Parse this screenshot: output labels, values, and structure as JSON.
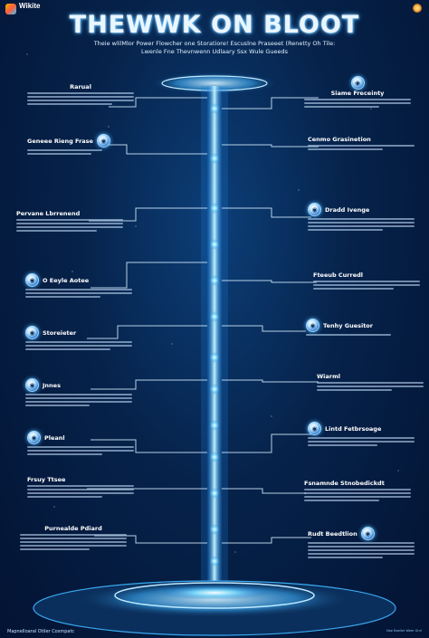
{
  "header": {
    "logo_text": "Wikite",
    "title": "THEWWK ON BLOOT",
    "subtitle_line1": "Theie wlilMlor Power Flowcher one Storatiore! Escuslne Praseeet (Renetty Oh Tile:",
    "subtitle_line2": "Lwenle Fne Thevnwenn Udlaary Ssx Wule Gueeds"
  },
  "nodes_left": [
    {
      "title": "Rarual"
    },
    {
      "title": "Geneee Rieng Frase"
    },
    {
      "title": "Pervane Lbrrenend"
    },
    {
      "title": "O Eeyle Aotee"
    },
    {
      "title": "Storeieter"
    },
    {
      "title": "Jnnes"
    },
    {
      "title": "Pleanl"
    },
    {
      "title": "Frsuy Ttsee"
    },
    {
      "title": "Purnealde Pdiard"
    }
  ],
  "nodes_right": [
    {
      "title": "Siame Freceinty"
    },
    {
      "title": "Cenmo Grasinetion"
    },
    {
      "title": "Dradd Ivenge"
    },
    {
      "title": "Fteeub Curredl"
    },
    {
      "title": "Tenhy Guesitor"
    },
    {
      "title": "Wiarml"
    },
    {
      "title": "Lintd Fetbrsoage"
    },
    {
      "title": "Fsnamnde Stnobedickdt"
    },
    {
      "title": "Rudt Beedtlion"
    }
  ],
  "footer": {
    "left": "Mapnelloaral Otiler Cosmpatc",
    "right": "Noe Baeiler Weer Gnrl"
  },
  "colors": {
    "beam": "#8fe6ff",
    "line": "#d6eeff",
    "accent": "#4fb6ff"
  }
}
